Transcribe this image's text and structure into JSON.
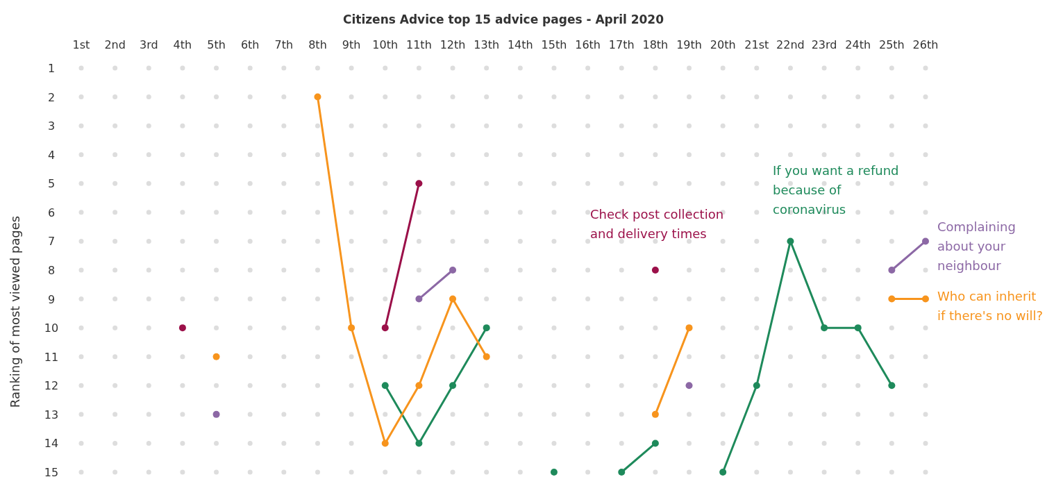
{
  "chart_data": {
    "type": "line",
    "title": "Citizens Advice top 15 advice pages - April 2020",
    "ylabel": "Ranking of most viewed pages",
    "categories": [
      "1st",
      "2nd",
      "3rd",
      "4th",
      "5th",
      "6th",
      "7th",
      "8th",
      "9th",
      "10th",
      "11th",
      "12th",
      "13th",
      "14th",
      "15th",
      "16th",
      "17th",
      "18th",
      "19th",
      "20th",
      "21st",
      "22nd",
      "23rd",
      "24th",
      "25th",
      "26th"
    ],
    "ylim": [
      15,
      1
    ],
    "yticks": [
      1,
      2,
      3,
      4,
      5,
      6,
      7,
      8,
      9,
      10,
      11,
      12,
      13,
      14,
      15
    ],
    "legend": false,
    "marker": "circle",
    "line_style": "solid",
    "series": [
      {
        "type": "scatter",
        "color": "#dddddd",
        "values": [
          1,
          1,
          1,
          1,
          1,
          1,
          1,
          1,
          1,
          1,
          1,
          1,
          1,
          1,
          1,
          1,
          1,
          1,
          1,
          1,
          1,
          1,
          1,
          1,
          1,
          1
        ]
      },
      {
        "type": "scatter",
        "color": "#dddddd",
        "values": [
          2,
          2,
          2,
          2,
          2,
          2,
          2,
          null,
          2,
          2,
          2,
          2,
          2,
          2,
          2,
          2,
          2,
          2,
          2,
          2,
          2,
          2,
          2,
          2,
          2,
          2
        ]
      },
      {
        "type": "scatter",
        "color": "#dddddd",
        "values": [
          3,
          3,
          3,
          3,
          3,
          3,
          3,
          3,
          3,
          3,
          3,
          3,
          3,
          3,
          3,
          3,
          3,
          3,
          3,
          3,
          3,
          3,
          3,
          3,
          3,
          3
        ]
      },
      {
        "type": "scatter",
        "color": "#dddddd",
        "values": [
          4,
          4,
          4,
          4,
          4,
          4,
          4,
          4,
          4,
          4,
          4,
          4,
          4,
          4,
          4,
          4,
          4,
          4,
          4,
          4,
          4,
          4,
          4,
          4,
          4,
          4
        ]
      },
      {
        "type": "scatter",
        "color": "#dddddd",
        "values": [
          5,
          5,
          5,
          5,
          5,
          5,
          5,
          5,
          5,
          5,
          null,
          5,
          5,
          5,
          5,
          5,
          5,
          5,
          5,
          5,
          5,
          5,
          5,
          5,
          5,
          5
        ]
      },
      {
        "type": "scatter",
        "color": "#dddddd",
        "values": [
          6,
          6,
          6,
          6,
          6,
          6,
          6,
          6,
          6,
          6,
          6,
          6,
          6,
          6,
          6,
          6,
          6,
          null,
          6,
          6,
          6,
          6,
          6,
          6,
          6,
          6
        ]
      },
      {
        "type": "scatter",
        "color": "#dddddd",
        "values": [
          7,
          7,
          7,
          7,
          7,
          7,
          7,
          7,
          7,
          7,
          7,
          7,
          7,
          7,
          7,
          7,
          7,
          7,
          7,
          7,
          7,
          null,
          7,
          7,
          7,
          null
        ]
      },
      {
        "type": "scatter",
        "color": "#dddddd",
        "values": [
          8,
          8,
          8,
          8,
          8,
          8,
          8,
          8,
          8,
          8,
          8,
          null,
          8,
          8,
          8,
          8,
          8,
          null,
          8,
          8,
          8,
          8,
          8,
          8,
          null,
          8
        ]
      },
      {
        "type": "scatter",
        "color": "#dddddd",
        "values": [
          9,
          9,
          9,
          9,
          9,
          9,
          9,
          9,
          9,
          9,
          null,
          null,
          9,
          9,
          9,
          9,
          9,
          9,
          9,
          9,
          9,
          9,
          9,
          9,
          null,
          null
        ]
      },
      {
        "type": "scatter",
        "color": "#dddddd",
        "values": [
          10,
          10,
          10,
          null,
          10,
          10,
          10,
          10,
          null,
          null,
          10,
          10,
          null,
          10,
          10,
          10,
          10,
          10,
          null,
          10,
          10,
          10,
          null,
          null,
          10,
          10
        ]
      },
      {
        "type": "scatter",
        "color": "#dddddd",
        "values": [
          11,
          11,
          11,
          11,
          null,
          11,
          11,
          11,
          11,
          11,
          11,
          11,
          null,
          11,
          11,
          11,
          11,
          11,
          11,
          11,
          11,
          11,
          11,
          11,
          11,
          11
        ]
      },
      {
        "type": "scatter",
        "color": "#dddddd",
        "values": [
          12,
          12,
          12,
          12,
          12,
          12,
          12,
          12,
          12,
          null,
          null,
          null,
          12,
          12,
          12,
          12,
          12,
          12,
          null,
          12,
          null,
          12,
          12,
          12,
          null,
          12
        ]
      },
      {
        "type": "scatter",
        "color": "#dddddd",
        "values": [
          13,
          13,
          13,
          13,
          null,
          13,
          13,
          13,
          13,
          13,
          13,
          13,
          13,
          13,
          13,
          13,
          13,
          null,
          13,
          13,
          13,
          13,
          13,
          13,
          13,
          13
        ]
      },
      {
        "type": "scatter",
        "color": "#dddddd",
        "values": [
          14,
          14,
          14,
          14,
          14,
          14,
          14,
          14,
          14,
          null,
          null,
          14,
          14,
          14,
          14,
          14,
          14,
          null,
          14,
          14,
          14,
          14,
          14,
          14,
          14,
          14
        ]
      },
      {
        "type": "scatter",
        "color": "#dddddd",
        "values": [
          15,
          15,
          15,
          15,
          15,
          15,
          15,
          15,
          15,
          15,
          15,
          15,
          15,
          15,
          null,
          15,
          null,
          15,
          15,
          null,
          15,
          15,
          15,
          15,
          15,
          15
        ]
      },
      {
        "name": "Check post collection and delivery times",
        "color": "#9b1049",
        "values": [
          null,
          null,
          null,
          10,
          null,
          null,
          null,
          null,
          null,
          10,
          5,
          null,
          null,
          null,
          null,
          null,
          null,
          8,
          null,
          null,
          null,
          null,
          null,
          null,
          null,
          null
        ]
      },
      {
        "name": "If you want a refund because of coronavirus",
        "color": "#1e8a5b",
        "values": [
          null,
          null,
          null,
          null,
          null,
          null,
          null,
          null,
          null,
          12,
          14,
          12,
          10,
          null,
          15,
          null,
          15,
          14,
          null,
          15,
          12,
          7,
          10,
          10,
          12,
          null
        ]
      },
      {
        "name": "Complaining about your neighbour",
        "color": "#8c68a5",
        "values": [
          null,
          null,
          null,
          null,
          13,
          null,
          null,
          null,
          null,
          null,
          9,
          8,
          null,
          null,
          null,
          null,
          null,
          null,
          12,
          null,
          null,
          null,
          null,
          null,
          8,
          7
        ]
      },
      {
        "name": "Who can inherit if there's no will?",
        "color": "#f7941d",
        "values": [
          null,
          null,
          null,
          null,
          11,
          null,
          null,
          2,
          10,
          14,
          12,
          9,
          11,
          null,
          null,
          null,
          null,
          13,
          10,
          null,
          null,
          null,
          null,
          null,
          9,
          9
        ]
      }
    ]
  }
}
